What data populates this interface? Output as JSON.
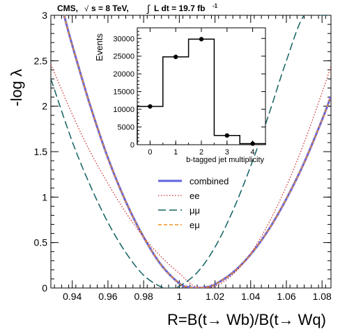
{
  "chart_data": [
    {
      "type": "line",
      "title": "CMS, √s = 8 TeV, ∫ L dt = 19.7 fb⁻¹",
      "header_parts": {
        "cms": "CMS,",
        "sqrt": "√",
        "s_eq": "s = 8 TeV,",
        "integral": "∫",
        "lumi": "L dt = 19.7 fb",
        "lumi_exp": "-1"
      },
      "xlabel": "R=B(t→ Wb)/B(t→ Wq)",
      "ylabel": "-log λ",
      "xlim": [
        0.928,
        1.085
      ],
      "ylim": [
        0,
        3
      ],
      "x_ticks": [
        0.94,
        0.96,
        0.98,
        1,
        1.02,
        1.04,
        1.06,
        1.08
      ],
      "x_tick_labels": [
        "0.94",
        "0.96",
        "0.98",
        "1",
        "1.02",
        "1.04",
        "1.06",
        "1.08"
      ],
      "y_ticks": [
        0,
        0.5,
        1,
        1.5,
        2,
        2.5,
        3
      ],
      "y_tick_labels": [
        "0",
        "0.5",
        "1",
        "1.5",
        "2",
        "2.5",
        "3"
      ],
      "legend_position": "center-right",
      "series": [
        {
          "name": "combined",
          "color": "#6060e0",
          "style": "solid",
          "x": [
            0.9354,
            0.94,
            0.95,
            0.96,
            0.97,
            0.98,
            0.99,
            1.0,
            1.005,
            1.01,
            1.015,
            1.02,
            1.03,
            1.04,
            1.05,
            1.06,
            1.07,
            1.08,
            1.085
          ],
          "y": [
            3.0,
            2.67,
            2.01,
            1.43,
            0.95,
            0.56,
            0.25,
            0.05,
            0.01,
            0.0,
            0.01,
            0.04,
            0.17,
            0.37,
            0.64,
            0.98,
            1.38,
            1.85,
            2.11
          ]
        },
        {
          "name": "ee",
          "color": "#cc3030",
          "style": "dotted",
          "x": [
            0.928,
            0.94,
            0.95,
            0.96,
            0.97,
            0.98,
            0.99,
            1.0,
            1.005,
            1.01,
            1.02,
            1.03,
            1.04,
            1.05,
            1.06,
            1.07,
            1.08,
            1.085
          ],
          "y": [
            2.46,
            1.91,
            1.5,
            1.15,
            0.83,
            0.56,
            0.34,
            0.16,
            0.07,
            0.01,
            0.02,
            0.15,
            0.38,
            0.71,
            1.12,
            1.6,
            2.15,
            2.44
          ]
        },
        {
          "name": "μμ",
          "color": "#106060",
          "style": "dashed",
          "x": [
            0.928,
            0.94,
            0.95,
            0.96,
            0.97,
            0.98,
            0.99,
            0.995,
            1.0,
            1.01,
            1.02,
            1.03,
            1.04,
            1.05,
            1.06,
            1.07,
            1.08,
            1.083
          ],
          "y": [
            2.3,
            1.61,
            1.13,
            0.72,
            0.39,
            0.14,
            0.01,
            0.0,
            0.02,
            0.17,
            0.45,
            0.85,
            1.34,
            1.9,
            2.5,
            3.0,
            3.0,
            3.0
          ]
        },
        {
          "name": "eμ",
          "color": "#f09020",
          "style": "dashed",
          "x": [
            0.9354,
            0.94,
            0.95,
            0.96,
            0.97,
            0.98,
            0.99,
            1.0,
            1.005,
            1.01,
            1.015,
            1.02,
            1.03,
            1.04,
            1.05,
            1.06,
            1.07,
            1.08,
            1.085
          ],
          "y": [
            3.0,
            2.67,
            2.01,
            1.43,
            0.95,
            0.56,
            0.25,
            0.05,
            0.01,
            0.0,
            0.01,
            0.04,
            0.17,
            0.37,
            0.64,
            0.98,
            1.38,
            1.85,
            2.11
          ]
        }
      ]
    },
    {
      "type": "bar",
      "xlabel": "b-tagged jet multiplicity",
      "ylabel": "Events",
      "categories": [
        "0",
        "1",
        "2",
        "3",
        "4"
      ],
      "values": [
        10800,
        24800,
        29800,
        2600,
        300
      ],
      "xlim": [
        -0.5,
        4.5
      ],
      "ylim": [
        0,
        33000
      ],
      "y_ticks": [
        0,
        5000,
        10000,
        15000,
        20000,
        25000,
        30000
      ],
      "y_tick_labels": [
        "0",
        "5000",
        "10000",
        "15000",
        "20000",
        "25000",
        "30000"
      ]
    }
  ]
}
